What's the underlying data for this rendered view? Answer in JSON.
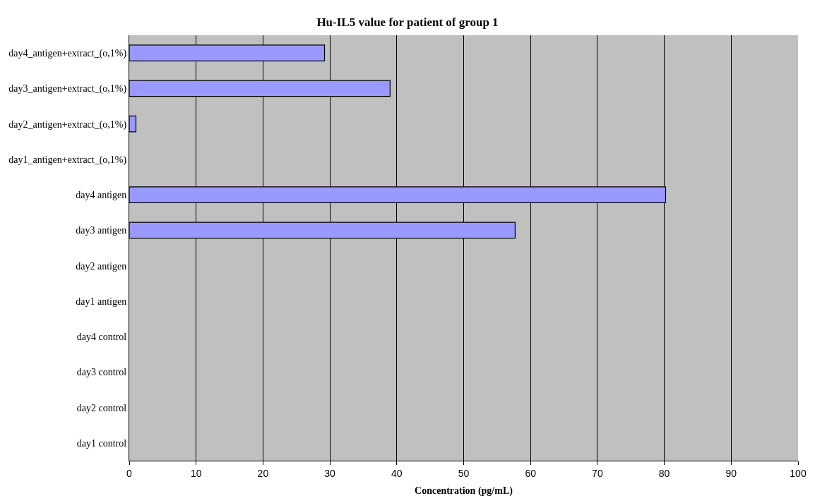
{
  "chart_data": {
    "type": "bar",
    "orientation": "horizontal",
    "title": "Hu-IL5 value for patient of group 1",
    "xlabel": "Concentration (pg/mL)",
    "categories": [
      "day4_antigen+extract_(o,1%)",
      "day3_antigen+extract_(o,1%)",
      "day2_antigen+extract_(o,1%)",
      "day1_antigen+extract_(o,1%)",
      "day4 antigen",
      "day3 antigen",
      "day2 antigen",
      "day1 antigen",
      "day4 control",
      "day3 control",
      "day2 control",
      "day1 control"
    ],
    "values": [
      29.2,
      39,
      1,
      null,
      80.2,
      57.7,
      null,
      null,
      null,
      null,
      null,
      null
    ],
    "color": "#9999ff",
    "xlim": [
      0,
      100
    ],
    "xticks": [
      0,
      10,
      20,
      30,
      40,
      50,
      60,
      70,
      80,
      90,
      100
    ],
    "grid": "x",
    "legend": false
  }
}
